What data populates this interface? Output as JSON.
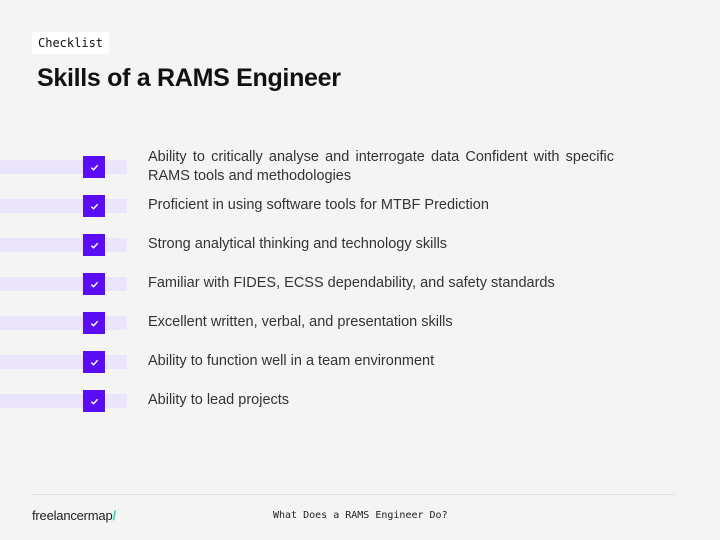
{
  "header": {
    "tag": "Checklist",
    "title": "Skills of a RAMS Engineer"
  },
  "checklist": {
    "items": [
      {
        "label": "Ability to critically analyse and interrogate data Confident with specific RAMS tools and methodologies",
        "checked": true
      },
      {
        "label": "Proficient in using software tools for MTBF Prediction",
        "checked": true
      },
      {
        "label": "Strong analytical thinking and technology skills",
        "checked": true
      },
      {
        "label": "Familiar with FIDES, ECSS dependability, and safety standards",
        "checked": true
      },
      {
        "label": "Excellent written, verbal, and presentation skills",
        "checked": true
      },
      {
        "label": "Ability to function well in a team environment",
        "checked": true
      },
      {
        "label": "Ability to lead projects",
        "checked": true
      }
    ]
  },
  "footer": {
    "logo_text": "freelancermap",
    "logo_slash": "/",
    "caption": "What Does a RAMS Engineer Do?"
  },
  "colors": {
    "accent": "#5a0df5",
    "bar": "#ebe5fb",
    "logo_accent": "#1ee0b0"
  }
}
